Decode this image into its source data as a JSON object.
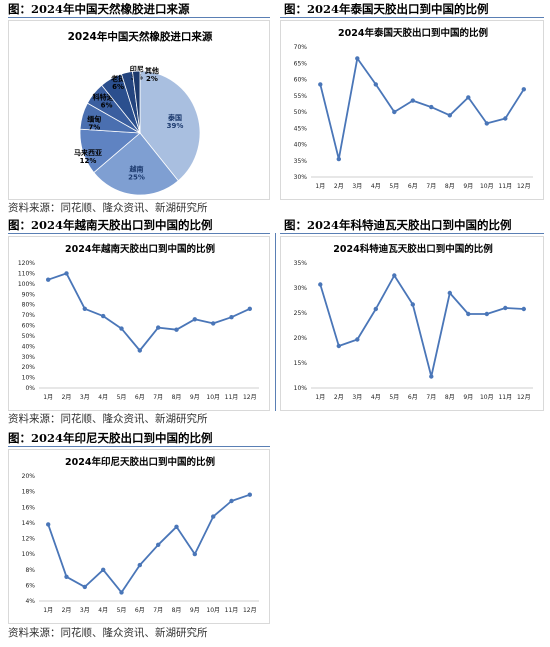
{
  "captions": {
    "pie": "图：2024年中国天然橡胶进口来源",
    "thailand": "图：2024年泰国天胶出口到中国的比例",
    "vietnam": "图：2024年越南天胶出口到中国的比例",
    "ivory": "图：2024年科特迪瓦天胶出口到中国的比例",
    "indonesia": "图：2024年印尼天胶出口到中国的比例"
  },
  "source": "资料来源：同花顺、隆众资讯、新湖研究所",
  "chart_data": [
    {
      "type": "pie",
      "title": "2024年中国天然橡胶进口来源",
      "slices": [
        {
          "label": "泰国",
          "value": 39,
          "pct": "39%",
          "color": "#a9bfe0"
        },
        {
          "label": "越南",
          "value": 25,
          "pct": "25%",
          "color": "#7f9fd2"
        },
        {
          "label": "马来西亚",
          "value": 12,
          "pct": "12%",
          "color": "#5f83c2"
        },
        {
          "label": "缅甸",
          "value": 7,
          "pct": "7%",
          "color": "#4a6fb0"
        },
        {
          "label": "科特迪瓦",
          "value": 6,
          "pct": "6%",
          "color": "#3a5e9f"
        },
        {
          "label": "老挝",
          "value": 6,
          "pct": "6%",
          "color": "#2b4f8e"
        },
        {
          "label": "印尼",
          "value": 3,
          "pct": "3%",
          "color": "#24457f"
        },
        {
          "label": "其他",
          "value": 2,
          "pct": "2%",
          "color": "#1c3a6e"
        }
      ]
    },
    {
      "type": "line",
      "title": "2024年泰国天胶出口到中国的比例",
      "categories": [
        "1月",
        "2月",
        "3月",
        "4月",
        "5月",
        "6月",
        "7月",
        "8月",
        "9月",
        "10月",
        "11月",
        "12月"
      ],
      "values": [
        58.5,
        35.5,
        66.5,
        58.5,
        50.0,
        53.5,
        51.5,
        49.0,
        54.5,
        46.5,
        48.0,
        57.0
      ],
      "ylim": [
        30,
        70
      ],
      "yticks": [
        "30%",
        "35%",
        "40%",
        "45%",
        "50%",
        "55%",
        "60%",
        "65%",
        "70%"
      ],
      "grid": false
    },
    {
      "type": "line",
      "title": "2024年越南天胶出口到中国的比例",
      "categories": [
        "1月",
        "2月",
        "3月",
        "4月",
        "5月",
        "6月",
        "7月",
        "8月",
        "9月",
        "10月",
        "11月",
        "12月"
      ],
      "values": [
        104,
        110,
        76,
        69,
        57,
        36,
        58,
        56,
        66,
        62,
        68,
        76
      ],
      "ylim": [
        0,
        120
      ],
      "yticks": [
        "0%",
        "10%",
        "20%",
        "30%",
        "40%",
        "50%",
        "60%",
        "70%",
        "80%",
        "90%",
        "100%",
        "110%",
        "120%"
      ],
      "grid": false
    },
    {
      "type": "line",
      "title": "2024科特迪瓦天胶出口到中国的比例",
      "categories": [
        "1月",
        "2月",
        "3月",
        "4月",
        "5月",
        "6月",
        "7月",
        "8月",
        "9月",
        "10月",
        "11月",
        "12月"
      ],
      "values": [
        30.7,
        18.4,
        19.7,
        25.8,
        32.5,
        26.7,
        12.3,
        29.0,
        24.8,
        24.8,
        26.0,
        25.8
      ],
      "ylim": [
        10,
        35
      ],
      "yticks": [
        "10%",
        "15%",
        "20%",
        "25%",
        "30%",
        "35%"
      ],
      "grid": false
    },
    {
      "type": "line",
      "title": "2024年印尼天胶出口到中国的比例",
      "categories": [
        "1月",
        "2月",
        "3月",
        "4月",
        "5月",
        "6月",
        "7月",
        "8月",
        "9月",
        "10月",
        "11月",
        "12月"
      ],
      "values": [
        13.8,
        7.1,
        5.8,
        8.0,
        5.1,
        8.6,
        11.2,
        13.5,
        10.0,
        14.8,
        16.8,
        17.6
      ],
      "ylim": [
        4,
        20
      ],
      "yticks": [
        "4%",
        "6%",
        "8%",
        "10%",
        "12%",
        "14%",
        "16%",
        "18%",
        "20%"
      ],
      "grid": false
    }
  ],
  "colors": {
    "line": "#4a76b8",
    "marker": "#4a76b8",
    "rule": "#5a7fb4"
  }
}
